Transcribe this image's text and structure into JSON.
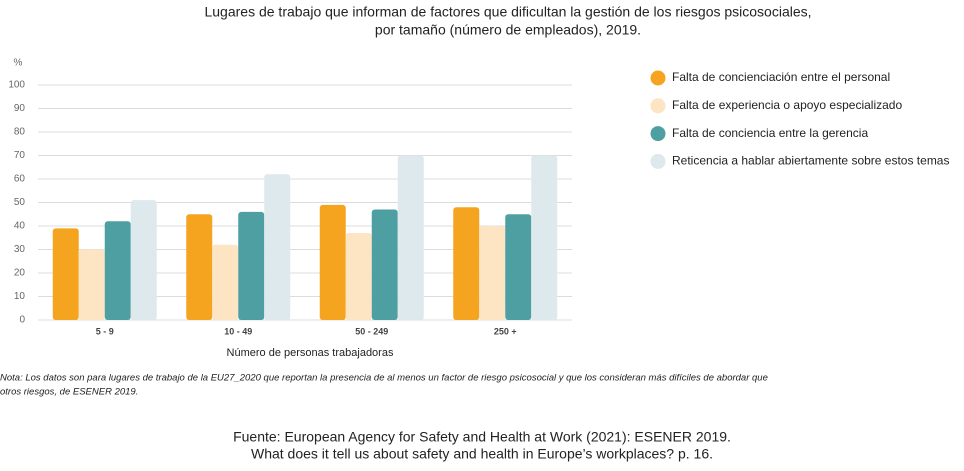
{
  "chart_data": {
    "type": "bar",
    "title": [
      "Lugares de trabajo que informan de factores que dificultan la gestión de los riesgos psicosociales,",
      "por tamaño (número de empleados), 2019."
    ],
    "y_label": "%",
    "x_label": "Número de personas trabajadoras",
    "categories": [
      "5 - 9",
      "10 - 49",
      "50 - 249",
      "250 +"
    ],
    "series": [
      {
        "name": "Falta de concienciación entre el personal",
        "color": "#f5a41f",
        "values": [
          39,
          45,
          49,
          48
        ]
      },
      {
        "name": "Falta de experiencia o apoyo especializado",
        "color": "#fde4c2",
        "values": [
          30,
          32,
          37,
          40
        ]
      },
      {
        "name": "Falta de conciencia entre la gerencia",
        "color": "#4e9fa2",
        "values": [
          42,
          46,
          47,
          45
        ]
      },
      {
        "name": "Reticencia a hablar abiertamente sobre estos temas",
        "color": "#dde9ec",
        "values": [
          51,
          62,
          70,
          70
        ]
      }
    ],
    "ylim": [
      0,
      100
    ],
    "yticks": [
      0,
      10,
      20,
      30,
      40,
      50,
      60,
      70,
      80,
      90,
      100
    ],
    "grid": true
  },
  "note": [
    "Nota: Los datos son para lugares de trabajo de la EU27_2020 que reportan la presencia de al menos un factor de riesgo psicosocial y que los consideran más difíciles de abordar que",
    "otros riesgos, de ESENER 2019."
  ],
  "source": [
    "Fuente: European Agency for Safety and Health at Work (2021): ESENER 2019.",
    "What does it tell us about safety and health in Europe’s workplaces? p. 16."
  ]
}
